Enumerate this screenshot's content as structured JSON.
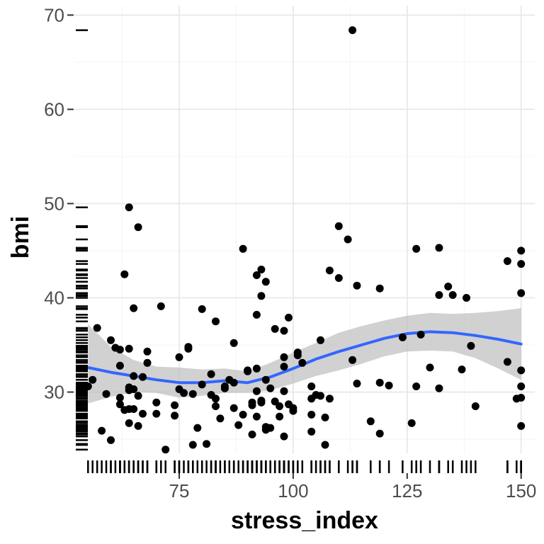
{
  "chart_data": {
    "type": "scatter",
    "title": "",
    "xlabel": "stress_index",
    "ylabel": "bmi",
    "xlim": [
      52,
      153
    ],
    "ylim": [
      23.5,
      71
    ],
    "x_ticks": [
      75,
      100,
      125,
      150
    ],
    "y_ticks": [
      30,
      40,
      50,
      60,
      70
    ],
    "grid": true,
    "legend": "none",
    "colors": {
      "points": "#000000",
      "smooth_line": "#3366FF",
      "ribbon": "#BEBEBE",
      "grid": "#E6E6E6"
    },
    "points": [
      [
        55,
        30.6
      ],
      [
        56,
        31.3
      ],
      [
        57,
        36.8
      ],
      [
        58,
        25.9
      ],
      [
        59,
        29.8
      ],
      [
        60,
        24.9
      ],
      [
        60,
        35.5
      ],
      [
        61,
        34.7
      ],
      [
        62,
        29.4
      ],
      [
        62,
        28.7
      ],
      [
        62,
        32.8
      ],
      [
        62,
        34.5
      ],
      [
        63,
        28.1
      ],
      [
        63,
        42.5
      ],
      [
        64,
        28.2
      ],
      [
        64,
        30.2
      ],
      [
        64,
        26.7
      ],
      [
        64,
        30.5
      ],
      [
        64,
        34.6
      ],
      [
        64,
        49.6
      ],
      [
        65,
        30.3
      ],
      [
        65,
        28.2
      ],
      [
        65,
        31.7
      ],
      [
        65,
        38.9
      ],
      [
        66,
        29.6
      ],
      [
        66,
        26.4
      ],
      [
        66,
        47.5
      ],
      [
        67,
        31.6
      ],
      [
        67,
        27.7
      ],
      [
        68,
        34.3
      ],
      [
        68,
        33.1
      ],
      [
        70,
        28.9
      ],
      [
        70,
        27.7
      ],
      [
        71,
        39.1
      ],
      [
        72,
        23.9
      ],
      [
        74,
        28.6
      ],
      [
        74,
        27.5
      ],
      [
        75,
        33.7
      ],
      [
        75,
        30.3
      ],
      [
        76,
        29.9
      ],
      [
        77,
        34.8
      ],
      [
        77,
        34.6
      ],
      [
        78,
        24.4
      ],
      [
        78,
        29.8
      ],
      [
        79,
        26.2
      ],
      [
        80,
        30.8
      ],
      [
        80,
        38.8
      ],
      [
        81,
        24.5
      ],
      [
        82,
        31.9
      ],
      [
        82,
        29.7
      ],
      [
        83,
        37.5
      ],
      [
        83,
        29.3
      ],
      [
        83,
        28.5
      ],
      [
        84,
        27.2
      ],
      [
        85,
        30.6
      ],
      [
        85,
        30.4
      ],
      [
        86,
        31.3
      ],
      [
        87,
        28.3
      ],
      [
        87,
        35.2
      ],
      [
        87,
        31.0
      ],
      [
        88,
        26.5
      ],
      [
        89,
        45.2
      ],
      [
        89,
        27.6
      ],
      [
        90,
        32.2
      ],
      [
        90,
        32.3
      ],
      [
        91,
        25.5
      ],
      [
        91,
        28.9
      ],
      [
        91,
        28.6
      ],
      [
        92,
        38.2
      ],
      [
        92,
        42.4
      ],
      [
        92,
        32.5
      ],
      [
        92,
        30.1
      ],
      [
        92,
        27.4
      ],
      [
        93,
        43.0
      ],
      [
        93,
        40.2
      ],
      [
        93,
        29.1
      ],
      [
        93,
        28.9
      ],
      [
        94,
        41.7
      ],
      [
        94,
        31.3
      ],
      [
        94,
        26.0
      ],
      [
        94,
        26.3
      ],
      [
        95,
        30.4
      ],
      [
        95,
        26.2
      ],
      [
        96,
        36.7
      ],
      [
        96,
        29.0
      ],
      [
        97,
        28.5
      ],
      [
        97,
        27.4
      ],
      [
        98,
        36.5
      ],
      [
        98,
        33.7
      ],
      [
        98,
        32.7
      ],
      [
        98,
        30.1
      ],
      [
        98,
        25.3
      ],
      [
        99,
        37.9
      ],
      [
        99,
        28.7
      ],
      [
        100,
        28.3
      ],
      [
        100,
        28.0
      ],
      [
        101,
        34.2
      ],
      [
        101,
        33.9
      ],
      [
        102,
        33.1
      ],
      [
        104,
        29.3
      ],
      [
        104,
        30.6
      ],
      [
        104,
        27.6
      ],
      [
        104,
        25.8
      ],
      [
        105,
        29.7
      ],
      [
        106,
        35.5
      ],
      [
        106,
        29.6
      ],
      [
        107,
        27.3
      ],
      [
        107,
        24.4
      ],
      [
        108,
        42.9
      ],
      [
        108,
        29.3
      ],
      [
        110,
        47.6
      ],
      [
        110,
        42.1
      ],
      [
        112,
        46.2
      ],
      [
        113,
        33.4
      ],
      [
        113,
        68.4
      ],
      [
        114,
        41.3
      ],
      [
        114,
        30.9
      ],
      [
        117,
        26.9
      ],
      [
        119,
        41.0
      ],
      [
        119,
        31.0
      ],
      [
        119,
        25.6
      ],
      [
        121,
        30.7
      ],
      [
        124,
        35.8
      ],
      [
        126,
        26.7
      ],
      [
        127,
        45.2
      ],
      [
        127,
        30.6
      ],
      [
        128,
        36.1
      ],
      [
        130,
        32.6
      ],
      [
        132,
        45.3
      ],
      [
        132,
        40.3
      ],
      [
        132,
        30.4
      ],
      [
        134,
        41.2
      ],
      [
        135,
        40.3
      ],
      [
        137,
        32.4
      ],
      [
        138,
        40.0
      ],
      [
        139,
        34.9
      ],
      [
        140,
        28.5
      ],
      [
        147,
        43.9
      ],
      [
        147,
        33.2
      ],
      [
        149,
        29.3
      ],
      [
        150,
        45.0
      ],
      [
        150,
        43.6
      ],
      [
        150,
        40.5
      ],
      [
        150,
        32.3
      ],
      [
        150,
        30.6
      ],
      [
        150,
        29.4
      ],
      [
        150,
        26.4
      ]
    ],
    "smooth": {
      "x": [
        55,
        60,
        65,
        70,
        75,
        80,
        85,
        90,
        95,
        100,
        105,
        110,
        115,
        120,
        125,
        130,
        135,
        140,
        145,
        150
      ],
      "y": [
        32.6,
        32.1,
        31.7,
        31.3,
        31.0,
        31.0,
        31.2,
        31.0,
        31.6,
        32.5,
        33.5,
        34.3,
        35.0,
        35.7,
        36.2,
        36.4,
        36.3,
        36.0,
        35.6,
        35.1
      ],
      "lower": [
        28.8,
        29.5,
        30.0,
        29.9,
        29.4,
        29.6,
        29.9,
        29.9,
        30.2,
        30.9,
        31.7,
        32.3,
        33.0,
        33.8,
        34.3,
        34.4,
        34.3,
        33.6,
        32.5,
        31.3
      ],
      "upper": [
        37.2,
        34.8,
        33.4,
        32.7,
        32.6,
        32.4,
        32.5,
        32.2,
        33.1,
        34.2,
        35.2,
        36.3,
        37.0,
        37.6,
        38.1,
        38.4,
        38.3,
        38.4,
        38.6,
        38.9
      ]
    }
  }
}
